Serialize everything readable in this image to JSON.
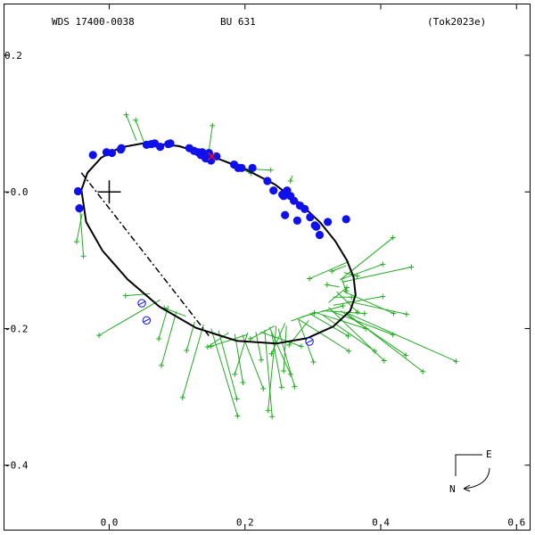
{
  "header": {
    "wds": "WDS 17400-0038",
    "name": "BU  631",
    "ref": "(Tok2023e)"
  },
  "compass": {
    "east": "E",
    "north": "N"
  },
  "chart_data": {
    "type": "scatter",
    "xlim": [
      -0.155,
      0.62
    ],
    "ylim": [
      -0.495,
      0.275
    ],
    "xticks": [
      {
        "v": 0.0,
        "label": "0.0"
      },
      {
        "v": 0.2,
        "label": "0.2"
      },
      {
        "v": 0.4,
        "label": "0.4"
      },
      {
        "v": 0.6,
        "label": "0.6"
      }
    ],
    "yticks": [
      {
        "v": 0.2,
        "label": "0.2"
      },
      {
        "v": 0.0,
        "label": "-0.0"
      },
      {
        "v": -0.2,
        "label": "-0.2"
      },
      {
        "v": -0.4,
        "label": "-0.4"
      }
    ],
    "primary": [
      0.0,
      0.0
    ],
    "orbit": {
      "points": [
        [
          -0.041,
          0.003
        ],
        [
          -0.032,
          0.028
        ],
        [
          -0.012,
          0.05
        ],
        [
          0.016,
          0.065
        ],
        [
          0.055,
          0.072
        ],
        [
          0.103,
          0.067
        ],
        [
          0.148,
          0.053
        ],
        [
          0.197,
          0.035
        ],
        [
          0.244,
          0.011
        ],
        [
          0.281,
          -0.017
        ],
        [
          0.311,
          -0.045
        ],
        [
          0.333,
          -0.072
        ],
        [
          0.35,
          -0.1
        ],
        [
          0.36,
          -0.125
        ],
        [
          0.363,
          -0.151
        ],
        [
          0.355,
          -0.174
        ],
        [
          0.33,
          -0.197
        ],
        [
          0.292,
          -0.214
        ],
        [
          0.246,
          -0.222
        ],
        [
          0.188,
          -0.218
        ],
        [
          0.128,
          -0.199
        ],
        [
          0.074,
          -0.168
        ],
        [
          0.027,
          -0.128
        ],
        [
          -0.01,
          -0.086
        ],
        [
          -0.034,
          -0.044
        ],
        [
          -0.041,
          0.003
        ]
      ],
      "line_of_nodes": [
        [
          -0.041,
          0.028
        ],
        [
          0.148,
          -0.212
        ]
      ]
    },
    "measurements_filled": [
      [
        -0.046,
        0.001
      ],
      [
        -0.044,
        -0.024
      ],
      [
        -0.024,
        0.054
      ],
      [
        -0.004,
        0.058
      ],
      [
        0.004,
        0.057
      ],
      [
        0.017,
        0.062
      ],
      [
        0.018,
        0.064
      ],
      [
        0.055,
        0.069
      ],
      [
        0.062,
        0.07
      ],
      [
        0.067,
        0.071
      ],
      [
        0.075,
        0.066
      ],
      [
        0.087,
        0.07
      ],
      [
        0.09,
        0.071
      ],
      [
        0.118,
        0.064
      ],
      [
        0.125,
        0.06
      ],
      [
        0.131,
        0.058
      ],
      [
        0.137,
        0.058
      ],
      [
        0.135,
        0.054
      ],
      [
        0.142,
        0.049
      ],
      [
        0.15,
        0.046
      ],
      [
        0.147,
        0.057
      ],
      [
        0.158,
        0.052
      ],
      [
        0.184,
        0.04
      ],
      [
        0.19,
        0.035
      ],
      [
        0.195,
        0.035
      ],
      [
        0.211,
        0.035
      ],
      [
        0.233,
        0.016
      ],
      [
        0.242,
        0.002
      ],
      [
        0.255,
        -0.004
      ],
      [
        0.257,
        -0.006
      ],
      [
        0.262,
        0.002
      ],
      [
        0.267,
        -0.006
      ],
      [
        0.272,
        -0.013
      ],
      [
        0.281,
        -0.02
      ],
      [
        0.288,
        -0.025
      ],
      [
        0.259,
        -0.034
      ],
      [
        0.277,
        -0.042
      ],
      [
        0.296,
        -0.037
      ],
      [
        0.305,
        -0.051
      ],
      [
        0.31,
        -0.063
      ],
      [
        0.303,
        -0.049
      ],
      [
        0.322,
        -0.044
      ],
      [
        0.349,
        -0.04
      ]
    ],
    "measurements_open": [
      [
        0.048,
        -0.163
      ],
      [
        0.055,
        -0.188
      ],
      [
        0.295,
        -0.219
      ]
    ],
    "highlight": [
      [
        0.151,
        0.052
      ]
    ],
    "residual_plus": [
      [
        [
          0.04,
          0.075
        ],
        [
          0.025,
          0.113
        ]
      ],
      [
        [
          0.053,
          0.068
        ],
        [
          0.039,
          0.105
        ]
      ],
      [
        [
          0.146,
          0.054
        ],
        [
          0.152,
          0.097
        ]
      ],
      [
        [
          0.196,
          0.034
        ],
        [
          0.238,
          0.032
        ]
      ],
      [
        [
          0.27,
          0.024
        ],
        [
          0.267,
          0.016
        ]
      ],
      [
        [
          0.148,
          0.054
        ],
        [
          0.209,
          0.027
        ]
      ],
      [
        [
          -0.043,
          -0.026
        ],
        [
          -0.038,
          -0.094
        ]
      ],
      [
        [
          -0.04,
          -0.032
        ],
        [
          -0.048,
          -0.073
        ]
      ],
      [
        [
          0.34,
          -0.129
        ],
        [
          0.418,
          -0.067
        ]
      ],
      [
        [
          0.341,
          -0.128
        ],
        [
          0.403,
          -0.106
        ]
      ],
      [
        [
          0.343,
          -0.132
        ],
        [
          0.445,
          -0.11
        ]
      ],
      [
        [
          0.33,
          -0.166
        ],
        [
          0.403,
          -0.153
        ]
      ],
      [
        [
          0.346,
          -0.146
        ],
        [
          0.419,
          -0.178
        ]
      ],
      [
        [
          0.351,
          -0.16
        ],
        [
          0.438,
          -0.179
        ]
      ],
      [
        [
          0.352,
          -0.178
        ],
        [
          0.511,
          -0.248
        ]
      ],
      [
        [
          0.349,
          -0.177
        ],
        [
          0.462,
          -0.263
        ]
      ],
      [
        [
          0.341,
          -0.174
        ],
        [
          0.437,
          -0.239
        ]
      ],
      [
        [
          0.328,
          -0.175
        ],
        [
          0.418,
          -0.209
        ]
      ],
      [
        [
          0.323,
          -0.169
        ],
        [
          0.405,
          -0.247
        ]
      ],
      [
        [
          0.314,
          -0.18
        ],
        [
          0.391,
          -0.233
        ]
      ],
      [
        [
          0.302,
          -0.176
        ],
        [
          0.378,
          -0.2
        ]
      ],
      [
        [
          0.295,
          -0.178
        ],
        [
          0.352,
          -0.211
        ]
      ],
      [
        [
          0.283,
          -0.183
        ],
        [
          0.344,
          -0.167
        ]
      ],
      [
        [
          0.278,
          -0.186
        ],
        [
          0.353,
          -0.233
        ]
      ],
      [
        [
          0.268,
          -0.189
        ],
        [
          0.302,
          -0.177
        ]
      ],
      [
        [
          0.259,
          -0.192
        ],
        [
          0.239,
          -0.237
        ]
      ],
      [
        [
          0.244,
          -0.196
        ],
        [
          0.208,
          -0.215
        ]
      ],
      [
        [
          0.236,
          -0.198
        ],
        [
          0.267,
          -0.267
        ]
      ],
      [
        [
          0.223,
          -0.205
        ],
        [
          0.283,
          -0.226
        ]
      ],
      [
        [
          0.216,
          -0.205
        ],
        [
          0.224,
          -0.246
        ]
      ],
      [
        [
          0.204,
          -0.206
        ],
        [
          0.185,
          -0.267
        ]
      ],
      [
        [
          0.196,
          -0.209
        ],
        [
          0.227,
          -0.288
        ]
      ],
      [
        [
          0.185,
          -0.208
        ],
        [
          0.197,
          -0.279
        ]
      ],
      [
        [
          0.176,
          -0.206
        ],
        [
          0.145,
          -0.227
        ]
      ],
      [
        [
          0.161,
          -0.203
        ],
        [
          0.188,
          -0.303
        ]
      ],
      [
        [
          0.15,
          -0.2
        ],
        [
          0.189,
          -0.328
        ]
      ],
      [
        [
          0.139,
          -0.194
        ],
        [
          0.108,
          -0.301
        ]
      ],
      [
        [
          0.126,
          -0.19
        ],
        [
          0.114,
          -0.232
        ]
      ],
      [
        [
          0.113,
          -0.182
        ],
        [
          0.081,
          -0.17
        ]
      ],
      [
        [
          0.099,
          -0.175
        ],
        [
          0.077,
          -0.254
        ]
      ],
      [
        [
          0.087,
          -0.167
        ],
        [
          0.073,
          -0.215
        ]
      ],
      [
        [
          0.075,
          -0.158
        ],
        [
          -0.015,
          -0.21
        ]
      ],
      [
        [
          0.06,
          -0.149
        ],
        [
          0.024,
          -0.152
        ]
      ],
      [
        [
          0.246,
          -0.196
        ],
        [
          0.234,
          -0.32
        ]
      ],
      [
        [
          0.229,
          -0.202
        ],
        [
          0.24,
          -0.329
        ]
      ],
      [
        [
          0.203,
          -0.209
        ],
        [
          0.15,
          -0.226
        ]
      ],
      [
        [
          0.294,
          -0.188
        ],
        [
          0.265,
          -0.224
        ]
      ],
      [
        [
          0.261,
          -0.196
        ],
        [
          0.257,
          -0.262
        ]
      ],
      [
        [
          0.249,
          -0.2
        ],
        [
          0.273,
          -0.285
        ]
      ],
      [
        [
          0.239,
          -0.205
        ],
        [
          0.254,
          -0.286
        ]
      ],
      [
        [
          0.279,
          -0.188
        ],
        [
          0.301,
          -0.249
        ]
      ],
      [
        [
          0.314,
          -0.174
        ],
        [
          0.376,
          -0.178
        ]
      ],
      [
        [
          0.323,
          -0.162
        ],
        [
          0.35,
          -0.14
        ]
      ],
      [
        [
          0.33,
          -0.154
        ],
        [
          0.357,
          -0.154
        ]
      ],
      [
        [
          0.335,
          -0.146
        ],
        [
          0.366,
          -0.176
        ]
      ],
      [
        [
          0.339,
          -0.139
        ],
        [
          0.321,
          -0.136
        ]
      ],
      [
        [
          0.343,
          -0.128
        ],
        [
          0.349,
          -0.145
        ]
      ],
      [
        [
          0.346,
          -0.118
        ],
        [
          0.365,
          -0.123
        ]
      ],
      [
        [
          0.349,
          -0.108
        ],
        [
          0.328,
          -0.116
        ]
      ],
      [
        [
          0.353,
          -0.102
        ],
        [
          0.295,
          -0.127
        ]
      ]
    ]
  }
}
